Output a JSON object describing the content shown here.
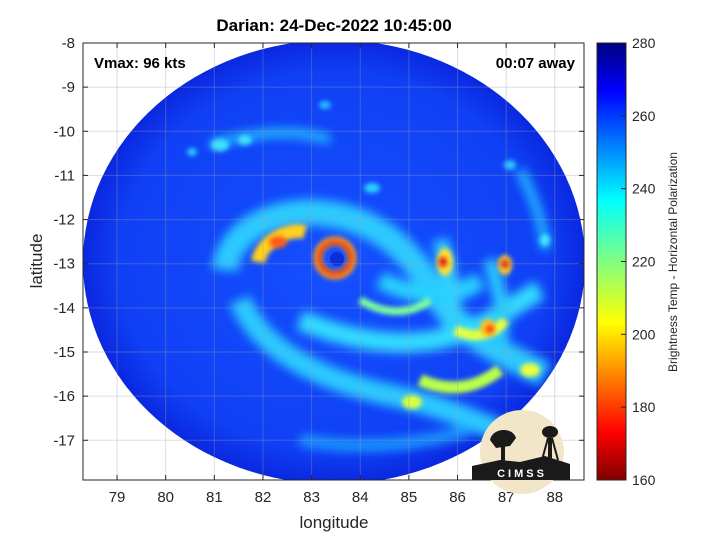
{
  "title": "Darian: 24-Dec-2022 10:45:00",
  "vmax_text": "Vmax: 96 kts",
  "time_away_text": "00:07 away",
  "map": {
    "xlabel": "longitude",
    "ylabel": "latitude",
    "xlim": [
      78.3,
      88.6
    ],
    "ylim": [
      -17.9,
      -8
    ],
    "x_ticks": [
      "79",
      "80",
      "81",
      "82",
      "83",
      "84",
      "85",
      "86",
      "87",
      "88"
    ],
    "y_ticks": [
      "-8",
      "-9",
      "-10",
      "-11",
      "-12",
      "-13",
      "-14",
      "-15",
      "-16",
      "-17"
    ],
    "grid": true,
    "storm_center": {
      "lon": 83.4,
      "lat": -12.95
    },
    "swath_center": {
      "lon": 83.45,
      "lat": -12.85
    }
  },
  "colorbar": {
    "label": "Brightness Temp - Horizontal Polarization",
    "min": 160,
    "max": 280,
    "ticks": [
      "160",
      "180",
      "200",
      "220",
      "240",
      "260",
      "280"
    ],
    "colormap": "jet"
  },
  "logo": {
    "text": "CIMSS"
  }
}
